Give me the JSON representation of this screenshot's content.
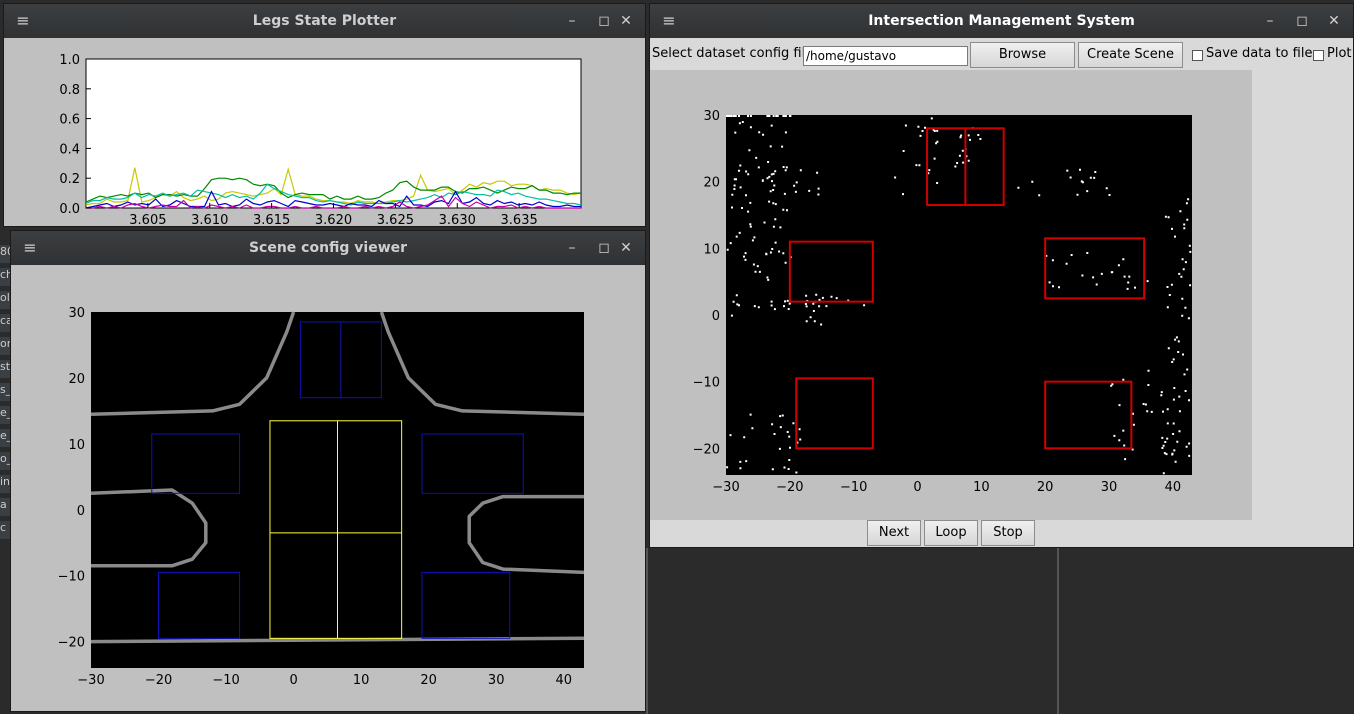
{
  "windows": {
    "legs": {
      "title": "Legs State Plotter"
    },
    "scene": {
      "title": "Scene config viewer"
    },
    "ims": {
      "title": "Intersection Management System",
      "config_label": "Select dataset config file",
      "config_value": "/home/gustavo",
      "browse_label": "Browse",
      "create_scene_label": "Create Scene",
      "save_data_label": "Save data to file",
      "plot_label": "Plot",
      "next_label": "Next",
      "loop_label": "Loop",
      "stop_label": "Stop"
    }
  },
  "window_controls": {
    "minimize": "–",
    "maximize": "◻",
    "close": "✕",
    "menu": "≡"
  },
  "desktop_fragments": [
    "80",
    "ch",
    "ole",
    "ca",
    "ort",
    "st",
    "s_",
    "e_",
    "e_",
    "o_",
    "in",
    "a",
    "c"
  ],
  "colors": {
    "boxes_scene_blue": "#1010c0",
    "boxes_scene_yellow": "#ffff40",
    "boxes_ims_red": "#d00000"
  },
  "chart_data": [
    {
      "type": "line",
      "title": "",
      "x_ticks": [
        "3.605",
        "3.610",
        "3.615",
        "3.620",
        "3.625",
        "3.630",
        "3.635"
      ],
      "y_ticks": [
        "0.0",
        "0.2",
        "0.4",
        "0.6",
        "0.8",
        "1.0"
      ],
      "xlim": [
        3.6,
        3.64
      ],
      "ylim": [
        0.0,
        1.0
      ],
      "series": [
        {
          "color": "#c8c800",
          "values": [
            0.02,
            0.03,
            0.03,
            0.06,
            0.04,
            0.04,
            0.05,
            0.27,
            0.04,
            0.05,
            0.07,
            0.09,
            0.08,
            0.11,
            0.07,
            0.05,
            0.06,
            0.08,
            0.05,
            0.06,
            0.1,
            0.11,
            0.1,
            0.09,
            0.08,
            0.09,
            0.1,
            0.13,
            0.09,
            0.26,
            0.09,
            0.08,
            0.08,
            0.06,
            0.05,
            0.05,
            0.04,
            0.04,
            0.03,
            0.05,
            0.04,
            0.04,
            0.03,
            0.04,
            0.05,
            0.05,
            0.06,
            0.08,
            0.22,
            0.12,
            0.11,
            0.12,
            0.13,
            0.09,
            0.12,
            0.16,
            0.14,
            0.17,
            0.16,
            0.18,
            0.18,
            0.15,
            0.16,
            0.16,
            0.15,
            0.12,
            0.13,
            0.12,
            0.12,
            0.1,
            0.09,
            0.1
          ]
        },
        {
          "color": "#008800",
          "values": [
            0.04,
            0.06,
            0.08,
            0.07,
            0.08,
            0.09,
            0.08,
            0.1,
            0.09,
            0.1,
            0.07,
            0.09,
            0.09,
            0.08,
            0.09,
            0.08,
            0.08,
            0.13,
            0.19,
            0.2,
            0.2,
            0.19,
            0.2,
            0.19,
            0.16,
            0.15,
            0.16,
            0.15,
            0.1,
            0.07,
            0.09,
            0.1,
            0.09,
            0.09,
            0.09,
            0.06,
            0.08,
            0.06,
            0.06,
            0.08,
            0.06,
            0.06,
            0.07,
            0.1,
            0.12,
            0.17,
            0.18,
            0.14,
            0.12,
            0.12,
            0.12,
            0.14,
            0.14,
            0.11,
            0.1,
            0.13,
            0.13,
            0.14,
            0.12,
            0.1,
            0.12,
            0.14,
            0.13,
            0.13,
            0.15,
            0.12,
            0.12,
            0.1,
            0.1,
            0.09,
            0.1,
            0.1
          ]
        },
        {
          "color": "#00c0a0",
          "values": [
            0.03,
            0.05,
            0.05,
            0.07,
            0.06,
            0.06,
            0.07,
            0.1,
            0.07,
            0.09,
            0.08,
            0.1,
            0.08,
            0.09,
            0.1,
            0.08,
            0.12,
            0.11,
            0.1,
            0.09,
            0.07,
            0.09,
            0.07,
            0.08,
            0.06,
            0.1,
            0.16,
            0.13,
            0.11,
            0.09,
            0.08,
            0.07,
            0.07,
            0.05,
            0.04,
            0.05,
            0.04,
            0.03,
            0.02,
            0.04,
            0.03,
            0.03,
            0.03,
            0.03,
            0.04,
            0.05,
            0.04,
            0.05,
            0.06,
            0.07,
            0.09,
            0.07,
            0.1,
            0.09,
            0.11,
            0.1,
            0.09,
            0.09,
            0.08,
            0.12,
            0.11,
            0.09,
            0.1,
            0.08,
            0.07,
            0.06,
            0.06,
            0.05,
            0.04,
            0.03,
            0.03,
            0.02
          ]
        },
        {
          "color": "#0000cc",
          "values": [
            0.0,
            0.01,
            0.02,
            0.03,
            0.01,
            0.02,
            0.04,
            0.02,
            0.03,
            0.02,
            0.06,
            0.01,
            0.02,
            0.05,
            0.03,
            0.01,
            0.01,
            0.01,
            0.11,
            0.02,
            0.03,
            0.01,
            0.02,
            0.06,
            0.03,
            0.02,
            0.04,
            0.05,
            0.03,
            0.01,
            0.05,
            0.04,
            0.03,
            0.02,
            0.02,
            0.03,
            0.02,
            0.01,
            0.03,
            0.02,
            0.02,
            0.01,
            0.05,
            0.03,
            0.03,
            0.01,
            0.08,
            0.02,
            0.02,
            0.01,
            0.04,
            0.05,
            0.03,
            0.11,
            0.03,
            0.04,
            0.07,
            0.03,
            0.02,
            0.05,
            0.03,
            0.04,
            0.02,
            0.03,
            0.02,
            0.04,
            0.02,
            0.01,
            0.01,
            0.02,
            0.01,
            0.01
          ]
        },
        {
          "color": "#cc00aa",
          "values": [
            0.0,
            0.0,
            0.01,
            0.0,
            0.01,
            0.0,
            0.02,
            0.03,
            0.01,
            0.0,
            0.01,
            0.02,
            0.01,
            0.01,
            0.05,
            0.0,
            0.01,
            0.0,
            0.02,
            0.01,
            0.0,
            0.01,
            0.0,
            0.02,
            0.0,
            0.0,
            0.01,
            0.01,
            0.0,
            0.0,
            0.01,
            0.0,
            0.0,
            0.01,
            0.0,
            0.0,
            0.0,
            0.01,
            0.0,
            0.0,
            0.01,
            0.0,
            0.01,
            0.0,
            0.01,
            0.04,
            0.01,
            0.0,
            0.01,
            0.02,
            0.05,
            0.08,
            0.01,
            0.07,
            0.03,
            0.01,
            0.04,
            0.02,
            0.0,
            0.01,
            0.01,
            0.02,
            0.0,
            0.01,
            0.0,
            0.01,
            0.0,
            0.0,
            0.0,
            0.0,
            0.0,
            0.0
          ]
        }
      ]
    },
    {
      "type": "scatter",
      "title": "",
      "x_ticks": [
        "−30",
        "−20",
        "−10",
        "0",
        "10",
        "20",
        "30",
        "40"
      ],
      "y_ticks": [
        "30",
        "20",
        "10",
        "0",
        "−10",
        "−20"
      ],
      "xlim": [
        -30,
        43
      ],
      "ylim": [
        -24,
        30
      ],
      "boxes_blue": [
        [
          1,
          17,
          13,
          28.5
        ],
        [
          -21,
          2.5,
          -8,
          11.5
        ],
        [
          19,
          2.5,
          34,
          11.5
        ],
        [
          -20,
          -19.5,
          -8,
          -9.5
        ],
        [
          19,
          -19.5,
          32,
          -9.5
        ]
      ],
      "boxes_yellow": [
        [
          -3.5,
          -19.5,
          16,
          13.5
        ],
        [
          6.5,
          -19.5,
          6.5,
          13.5
        ],
        [
          -3.5,
          -3.5,
          16,
          -3.5
        ]
      ],
      "roads": [
        [
          [
            -30,
            14.5
          ],
          [
            -12,
            15
          ],
          [
            -8,
            16
          ],
          [
            -4,
            20
          ],
          [
            -1,
            27
          ],
          [
            0,
            30
          ]
        ],
        [
          [
            13,
            30
          ],
          [
            14,
            27
          ],
          [
            17,
            20
          ],
          [
            21,
            16
          ],
          [
            25,
            15
          ],
          [
            43,
            14.5
          ]
        ],
        [
          [
            -30,
            2.5
          ],
          [
            -18,
            3
          ],
          [
            -15,
            1
          ],
          [
            -13,
            -2
          ],
          [
            -13,
            -5
          ],
          [
            -15,
            -7.5
          ],
          [
            -18,
            -8.5
          ],
          [
            -30,
            -8.5
          ]
        ],
        [
          [
            43,
            2
          ],
          [
            31,
            2
          ],
          [
            28,
            1
          ],
          [
            26,
            -1
          ],
          [
            26,
            -5
          ],
          [
            28,
            -8
          ],
          [
            31,
            -9
          ],
          [
            43,
            -9.5
          ]
        ],
        [
          [
            -30,
            -20
          ],
          [
            43,
            -19.5
          ]
        ]
      ]
    },
    {
      "type": "scatter",
      "title": "",
      "x_ticks": [
        "−30",
        "−20",
        "−10",
        "0",
        "10",
        "20",
        "30",
        "40"
      ],
      "y_ticks": [
        "30",
        "20",
        "10",
        "0",
        "−10",
        "−20"
      ],
      "xlim": [
        -30,
        43
      ],
      "ylim": [
        -24,
        30
      ],
      "boxes_red": [
        [
          1.5,
          16.5,
          13.5,
          28
        ],
        [
          -20,
          2,
          -7,
          11
        ],
        [
          20,
          2.5,
          35.5,
          11.5
        ],
        [
          -19,
          -20,
          -7,
          -9.5
        ],
        [
          20,
          -20,
          33.5,
          -10
        ]
      ]
    }
  ]
}
